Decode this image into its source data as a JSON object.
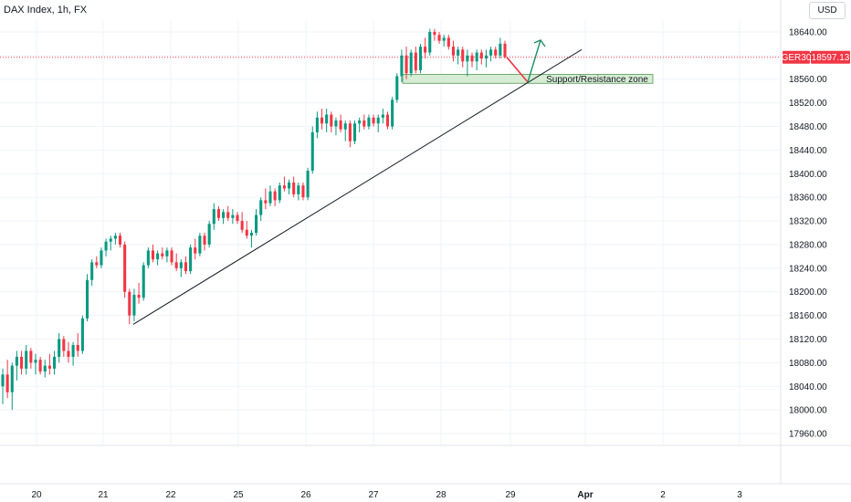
{
  "header": {
    "title": "DAX Index, 1h, FX",
    "currency": "USD"
  },
  "price_tag": {
    "symbol": "GER30",
    "value": "18597.13"
  },
  "colors": {
    "up": "#089981",
    "down": "#f23645",
    "grid": "#f0f3fa",
    "zone_fill": "#d7ecd4",
    "zone_border": "#4e9a4e",
    "arrow_up": "#1b8f65",
    "arrow_down": "#f23645",
    "trend": "#131722"
  },
  "chart_data": {
    "type": "candlestick",
    "y_range": [
      17940,
      18660
    ],
    "y_ticks": [
      17960,
      18000,
      18040,
      18080,
      18120,
      18160,
      18200,
      18240,
      18280,
      18320,
      18360,
      18400,
      18440,
      18480,
      18520,
      18560,
      18600,
      18640
    ],
    "x_ticks": [
      "20",
      "21",
      "22",
      "25",
      "26",
      "27",
      "28",
      "29",
      "Apr",
      "2",
      "3"
    ],
    "last_price": 18597.13,
    "annotations": {
      "zone": {
        "label": "Support/Resistance zone",
        "low": 18553,
        "high": 18568
      },
      "trendline": {
        "from": 18145,
        "to": 18610
      }
    },
    "series": [
      {
        "o": 18040,
        "h": 18070,
        "l": 18010,
        "c": 18060
      },
      {
        "o": 18060,
        "h": 18085,
        "l": 18020,
        "c": 18030
      },
      {
        "o": 18030,
        "h": 18080,
        "l": 18000,
        "c": 18075
      },
      {
        "o": 18075,
        "h": 18100,
        "l": 18050,
        "c": 18090
      },
      {
        "o": 18090,
        "h": 18100,
        "l": 18060,
        "c": 18070
      },
      {
        "o": 18070,
        "h": 18110,
        "l": 18060,
        "c": 18100
      },
      {
        "o": 18100,
        "h": 18105,
        "l": 18070,
        "c": 18080
      },
      {
        "o": 18080,
        "h": 18095,
        "l": 18060,
        "c": 18085
      },
      {
        "o": 18085,
        "h": 18090,
        "l": 18060,
        "c": 18065
      },
      {
        "o": 18065,
        "h": 18085,
        "l": 18055,
        "c": 18075
      },
      {
        "o": 18075,
        "h": 18095,
        "l": 18060,
        "c": 18070
      },
      {
        "o": 18070,
        "h": 18100,
        "l": 18060,
        "c": 18090
      },
      {
        "o": 18090,
        "h": 18130,
        "l": 18080,
        "c": 18120
      },
      {
        "o": 18120,
        "h": 18125,
        "l": 18090,
        "c": 18100
      },
      {
        "o": 18100,
        "h": 18115,
        "l": 18080,
        "c": 18090
      },
      {
        "o": 18090,
        "h": 18115,
        "l": 18075,
        "c": 18110
      },
      {
        "o": 18110,
        "h": 18130,
        "l": 18090,
        "c": 18100
      },
      {
        "o": 18100,
        "h": 18160,
        "l": 18095,
        "c": 18155
      },
      {
        "o": 18155,
        "h": 18230,
        "l": 18150,
        "c": 18220
      },
      {
        "o": 18220,
        "h": 18255,
        "l": 18210,
        "c": 18250
      },
      {
        "o": 18250,
        "h": 18260,
        "l": 18240,
        "c": 18245
      },
      {
        "o": 18245,
        "h": 18275,
        "l": 18240,
        "c": 18270
      },
      {
        "o": 18270,
        "h": 18290,
        "l": 18260,
        "c": 18285
      },
      {
        "o": 18285,
        "h": 18295,
        "l": 18270,
        "c": 18290
      },
      {
        "o": 18290,
        "h": 18300,
        "l": 18280,
        "c": 18295
      },
      {
        "o": 18295,
        "h": 18300,
        "l": 18275,
        "c": 18280
      },
      {
        "o": 18280,
        "h": 18285,
        "l": 18190,
        "c": 18200
      },
      {
        "o": 18200,
        "h": 18205,
        "l": 18145,
        "c": 18160
      },
      {
        "o": 18160,
        "h": 18205,
        "l": 18150,
        "c": 18195
      },
      {
        "o": 18195,
        "h": 18215,
        "l": 18180,
        "c": 18190
      },
      {
        "o": 18190,
        "h": 18250,
        "l": 18185,
        "c": 18245
      },
      {
        "o": 18245,
        "h": 18275,
        "l": 18240,
        "c": 18270
      },
      {
        "o": 18270,
        "h": 18280,
        "l": 18250,
        "c": 18255
      },
      {
        "o": 18255,
        "h": 18270,
        "l": 18245,
        "c": 18265
      },
      {
        "o": 18265,
        "h": 18275,
        "l": 18255,
        "c": 18260
      },
      {
        "o": 18260,
        "h": 18275,
        "l": 18250,
        "c": 18270
      },
      {
        "o": 18270,
        "h": 18275,
        "l": 18245,
        "c": 18250
      },
      {
        "o": 18250,
        "h": 18265,
        "l": 18235,
        "c": 18240
      },
      {
        "o": 18240,
        "h": 18255,
        "l": 18225,
        "c": 18250
      },
      {
        "o": 18250,
        "h": 18260,
        "l": 18230,
        "c": 18235
      },
      {
        "o": 18235,
        "h": 18280,
        "l": 18230,
        "c": 18275
      },
      {
        "o": 18275,
        "h": 18290,
        "l": 18255,
        "c": 18265
      },
      {
        "o": 18265,
        "h": 18300,
        "l": 18260,
        "c": 18295
      },
      {
        "o": 18295,
        "h": 18300,
        "l": 18270,
        "c": 18280
      },
      {
        "o": 18280,
        "h": 18320,
        "l": 18275,
        "c": 18315
      },
      {
        "o": 18315,
        "h": 18350,
        "l": 18305,
        "c": 18340
      },
      {
        "o": 18340,
        "h": 18345,
        "l": 18320,
        "c": 18325
      },
      {
        "o": 18325,
        "h": 18340,
        "l": 18315,
        "c": 18335
      },
      {
        "o": 18335,
        "h": 18345,
        "l": 18320,
        "c": 18325
      },
      {
        "o": 18325,
        "h": 18340,
        "l": 18315,
        "c": 18330
      },
      {
        "o": 18330,
        "h": 18335,
        "l": 18315,
        "c": 18320
      },
      {
        "o": 18320,
        "h": 18335,
        "l": 18300,
        "c": 18305
      },
      {
        "o": 18305,
        "h": 18320,
        "l": 18290,
        "c": 18295
      },
      {
        "o": 18295,
        "h": 18305,
        "l": 18275,
        "c": 18300
      },
      {
        "o": 18300,
        "h": 18340,
        "l": 18295,
        "c": 18330
      },
      {
        "o": 18330,
        "h": 18360,
        "l": 18320,
        "c": 18355
      },
      {
        "o": 18355,
        "h": 18375,
        "l": 18340,
        "c": 18350
      },
      {
        "o": 18350,
        "h": 18380,
        "l": 18345,
        "c": 18370
      },
      {
        "o": 18370,
        "h": 18375,
        "l": 18345,
        "c": 18355
      },
      {
        "o": 18355,
        "h": 18385,
        "l": 18350,
        "c": 18380
      },
      {
        "o": 18380,
        "h": 18395,
        "l": 18370,
        "c": 18375
      },
      {
        "o": 18375,
        "h": 18390,
        "l": 18365,
        "c": 18385
      },
      {
        "o": 18385,
        "h": 18395,
        "l": 18360,
        "c": 18365
      },
      {
        "o": 18365,
        "h": 18385,
        "l": 18355,
        "c": 18380
      },
      {
        "o": 18380,
        "h": 18385,
        "l": 18355,
        "c": 18360
      },
      {
        "o": 18360,
        "h": 18410,
        "l": 18355,
        "c": 18405
      },
      {
        "o": 18405,
        "h": 18480,
        "l": 18400,
        "c": 18470
      },
      {
        "o": 18470,
        "h": 18505,
        "l": 18460,
        "c": 18495
      },
      {
        "o": 18495,
        "h": 18510,
        "l": 18475,
        "c": 18485
      },
      {
        "o": 18485,
        "h": 18510,
        "l": 18470,
        "c": 18500
      },
      {
        "o": 18500,
        "h": 18505,
        "l": 18470,
        "c": 18480
      },
      {
        "o": 18480,
        "h": 18495,
        "l": 18465,
        "c": 18490
      },
      {
        "o": 18490,
        "h": 18500,
        "l": 18470,
        "c": 18475
      },
      {
        "o": 18475,
        "h": 18490,
        "l": 18455,
        "c": 18485
      },
      {
        "o": 18485,
        "h": 18490,
        "l": 18445,
        "c": 18455
      },
      {
        "o": 18455,
        "h": 18490,
        "l": 18450,
        "c": 18485
      },
      {
        "o": 18485,
        "h": 18495,
        "l": 18470,
        "c": 18490
      },
      {
        "o": 18490,
        "h": 18500,
        "l": 18475,
        "c": 18480
      },
      {
        "o": 18480,
        "h": 18500,
        "l": 18475,
        "c": 18495
      },
      {
        "o": 18495,
        "h": 18500,
        "l": 18480,
        "c": 18485
      },
      {
        "o": 18485,
        "h": 18500,
        "l": 18470,
        "c": 18495
      },
      {
        "o": 18495,
        "h": 18510,
        "l": 18485,
        "c": 18500
      },
      {
        "o": 18500,
        "h": 18505,
        "l": 18475,
        "c": 18480
      },
      {
        "o": 18480,
        "h": 18530,
        "l": 18475,
        "c": 18525
      },
      {
        "o": 18525,
        "h": 18570,
        "l": 18520,
        "c": 18565
      },
      {
        "o": 18565,
        "h": 18610,
        "l": 18555,
        "c": 18600
      },
      {
        "o": 18600,
        "h": 18615,
        "l": 18560,
        "c": 18570
      },
      {
        "o": 18570,
        "h": 18610,
        "l": 18565,
        "c": 18605
      },
      {
        "o": 18605,
        "h": 18615,
        "l": 18570,
        "c": 18575
      },
      {
        "o": 18575,
        "h": 18620,
        "l": 18570,
        "c": 18615
      },
      {
        "o": 18615,
        "h": 18630,
        "l": 18595,
        "c": 18605
      },
      {
        "o": 18605,
        "h": 18645,
        "l": 18600,
        "c": 18640
      },
      {
        "o": 18640,
        "h": 18645,
        "l": 18625,
        "c": 18635
      },
      {
        "o": 18635,
        "h": 18640,
        "l": 18620,
        "c": 18625
      },
      {
        "o": 18625,
        "h": 18635,
        "l": 18615,
        "c": 18630
      },
      {
        "o": 18630,
        "h": 18635,
        "l": 18610,
        "c": 18615
      },
      {
        "o": 18615,
        "h": 18625,
        "l": 18590,
        "c": 18600
      },
      {
        "o": 18600,
        "h": 18615,
        "l": 18585,
        "c": 18610
      },
      {
        "o": 18610,
        "h": 18615,
        "l": 18580,
        "c": 18590
      },
      {
        "o": 18590,
        "h": 18610,
        "l": 18565,
        "c": 18600
      },
      {
        "o": 18600,
        "h": 18605,
        "l": 18580,
        "c": 18590
      },
      {
        "o": 18590,
        "h": 18610,
        "l": 18575,
        "c": 18605
      },
      {
        "o": 18605,
        "h": 18610,
        "l": 18585,
        "c": 18595
      },
      {
        "o": 18595,
        "h": 18610,
        "l": 18580,
        "c": 18600
      },
      {
        "o": 18600,
        "h": 18615,
        "l": 18590,
        "c": 18610
      },
      {
        "o": 18610,
        "h": 18615,
        "l": 18595,
        "c": 18600
      },
      {
        "o": 18600,
        "h": 18630,
        "l": 18595,
        "c": 18620
      },
      {
        "o": 18620,
        "h": 18625,
        "l": 18595,
        "c": 18597.13
      }
    ]
  }
}
